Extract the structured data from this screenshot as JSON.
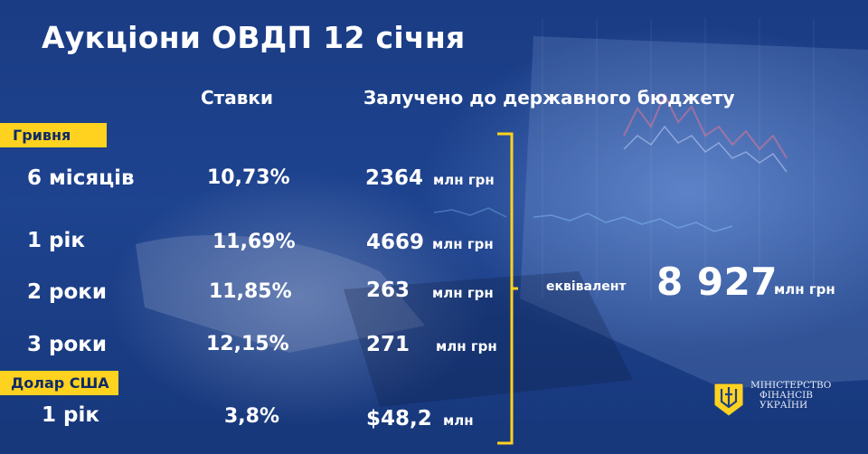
{
  "title": "Аукціони ОВДП 12 січня",
  "headers": {
    "rates": "Ставки",
    "raised": "Залучено до державного бюджету"
  },
  "groups": {
    "uah": "Гривня",
    "usd": "Долар США"
  },
  "rows": [
    {
      "term": "6 місяців",
      "rate": "10,73%",
      "amount": "2364",
      "unit": "млн грн"
    },
    {
      "term": "1 рік",
      "rate": "11,69%",
      "amount": "4669",
      "unit": "млн грн"
    },
    {
      "term": "2 роки",
      "rate": "11,85%",
      "amount": "263",
      "unit": "млн грн"
    },
    {
      "term": "3 роки",
      "rate": "12,15%",
      "amount": "271",
      "unit": "млн грн"
    },
    {
      "term": "1 рік",
      "rate": "3,8%",
      "amount": "$48,2",
      "unit": "млн"
    }
  ],
  "total": {
    "label": "еквівалент",
    "value": "8 927",
    "unit": "млн грн"
  },
  "ministry": {
    "line1": "МІНІСТЕРСТВО",
    "line2": "ФІНАНСІВ",
    "line3": "УКРАЇНИ"
  },
  "colors": {
    "background": "#1d3f86",
    "accent": "#ffd21f",
    "tag_text": "#0f2a66"
  },
  "icons": {
    "emblem": "trident-icon"
  }
}
